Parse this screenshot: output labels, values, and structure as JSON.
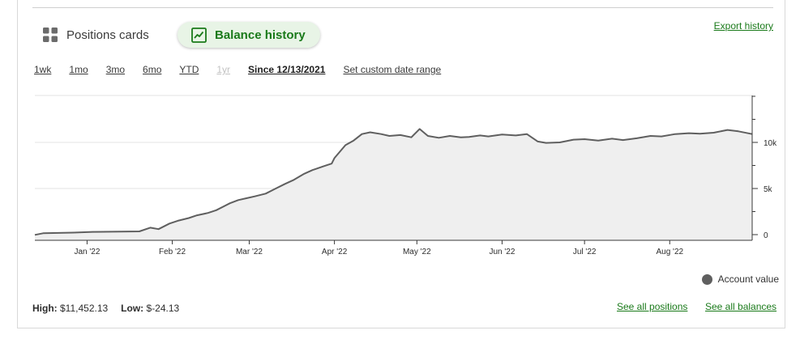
{
  "tabs": {
    "positions_label": "Positions cards",
    "balance_label": "Balance history"
  },
  "export_label": "Export history",
  "ranges": [
    {
      "label": "1wk",
      "state": "normal"
    },
    {
      "label": "1mo",
      "state": "normal"
    },
    {
      "label": "3mo",
      "state": "normal"
    },
    {
      "label": "6mo",
      "state": "normal"
    },
    {
      "label": "YTD",
      "state": "normal"
    },
    {
      "label": "1yr",
      "state": "disabled"
    },
    {
      "label": "Since 12/13/2021",
      "state": "active"
    }
  ],
  "custom_range_label": "Set custom date range",
  "colors": {
    "accent": "#1a7a1a",
    "accent_bg": "#e8f4e6",
    "line": "#5f5f5f",
    "area": "#efefef"
  },
  "chart_data": {
    "type": "area",
    "title": "",
    "xlabel": "",
    "ylabel": "",
    "x_ticks": [
      "Jan '22",
      "Feb '22",
      "Mar '22",
      "Apr '22",
      "May '22",
      "Jun '22",
      "Jul '22",
      "Aug '22"
    ],
    "y_ticks": [
      "0",
      "5k",
      "10k"
    ],
    "y_tick_values": [
      0,
      5000,
      10000
    ],
    "ylim": [
      0,
      15000
    ],
    "legend_position": "bottom-right",
    "series": [
      {
        "name": "Account value",
        "x": [
          "2021-12-13",
          "2021-12-16",
          "2021-12-27",
          "2022-01-03",
          "2022-01-10",
          "2022-01-20",
          "2022-01-24",
          "2022-01-27",
          "2022-01-31",
          "2022-02-03",
          "2022-02-07",
          "2022-02-10",
          "2022-02-14",
          "2022-02-17",
          "2022-02-22",
          "2022-02-25",
          "2022-02-28",
          "2022-03-03",
          "2022-03-07",
          "2022-03-10",
          "2022-03-14",
          "2022-03-17",
          "2022-03-21",
          "2022-03-24",
          "2022-03-25",
          "2022-03-28",
          "2022-03-31",
          "2022-04-01",
          "2022-04-05",
          "2022-04-08",
          "2022-04-11",
          "2022-04-14",
          "2022-04-18",
          "2022-04-21",
          "2022-04-25",
          "2022-04-29",
          "2022-05-02",
          "2022-05-05",
          "2022-05-09",
          "2022-05-13",
          "2022-05-17",
          "2022-05-20",
          "2022-05-24",
          "2022-05-27",
          "2022-06-01",
          "2022-06-06",
          "2022-06-10",
          "2022-06-14",
          "2022-06-17",
          "2022-06-22",
          "2022-06-27",
          "2022-07-01",
          "2022-07-06",
          "2022-07-11",
          "2022-07-15",
          "2022-07-20",
          "2022-07-25",
          "2022-07-29",
          "2022-08-03",
          "2022-08-08",
          "2022-08-12",
          "2022-08-17",
          "2022-08-22",
          "2022-08-26",
          "2022-08-31"
        ],
        "y": [
          -24.13,
          150,
          220,
          300,
          320,
          350,
          750,
          600,
          1200,
          1500,
          1800,
          2100,
          2350,
          2650,
          3400,
          3750,
          3950,
          4150,
          4450,
          4900,
          5500,
          5900,
          6600,
          7000,
          7100,
          7400,
          7700,
          8300,
          9700,
          10200,
          10900,
          11100,
          10900,
          10700,
          10800,
          10550,
          11452.13,
          10700,
          10500,
          10700,
          10550,
          10600,
          10750,
          10650,
          10850,
          10750,
          10900,
          10100,
          9950,
          10000,
          10300,
          10350,
          10200,
          10400,
          10250,
          10450,
          10700,
          10650,
          10900,
          11000,
          10950,
          11050,
          11350,
          11200,
          10900
        ]
      }
    ]
  },
  "legend_label": "Account value",
  "stats": {
    "high_label": "High:",
    "high_value": "$11,452.13",
    "low_label": "Low:",
    "low_value": "$-24.13"
  },
  "links": {
    "see_positions": "See all positions",
    "see_balances": "See all balances"
  }
}
